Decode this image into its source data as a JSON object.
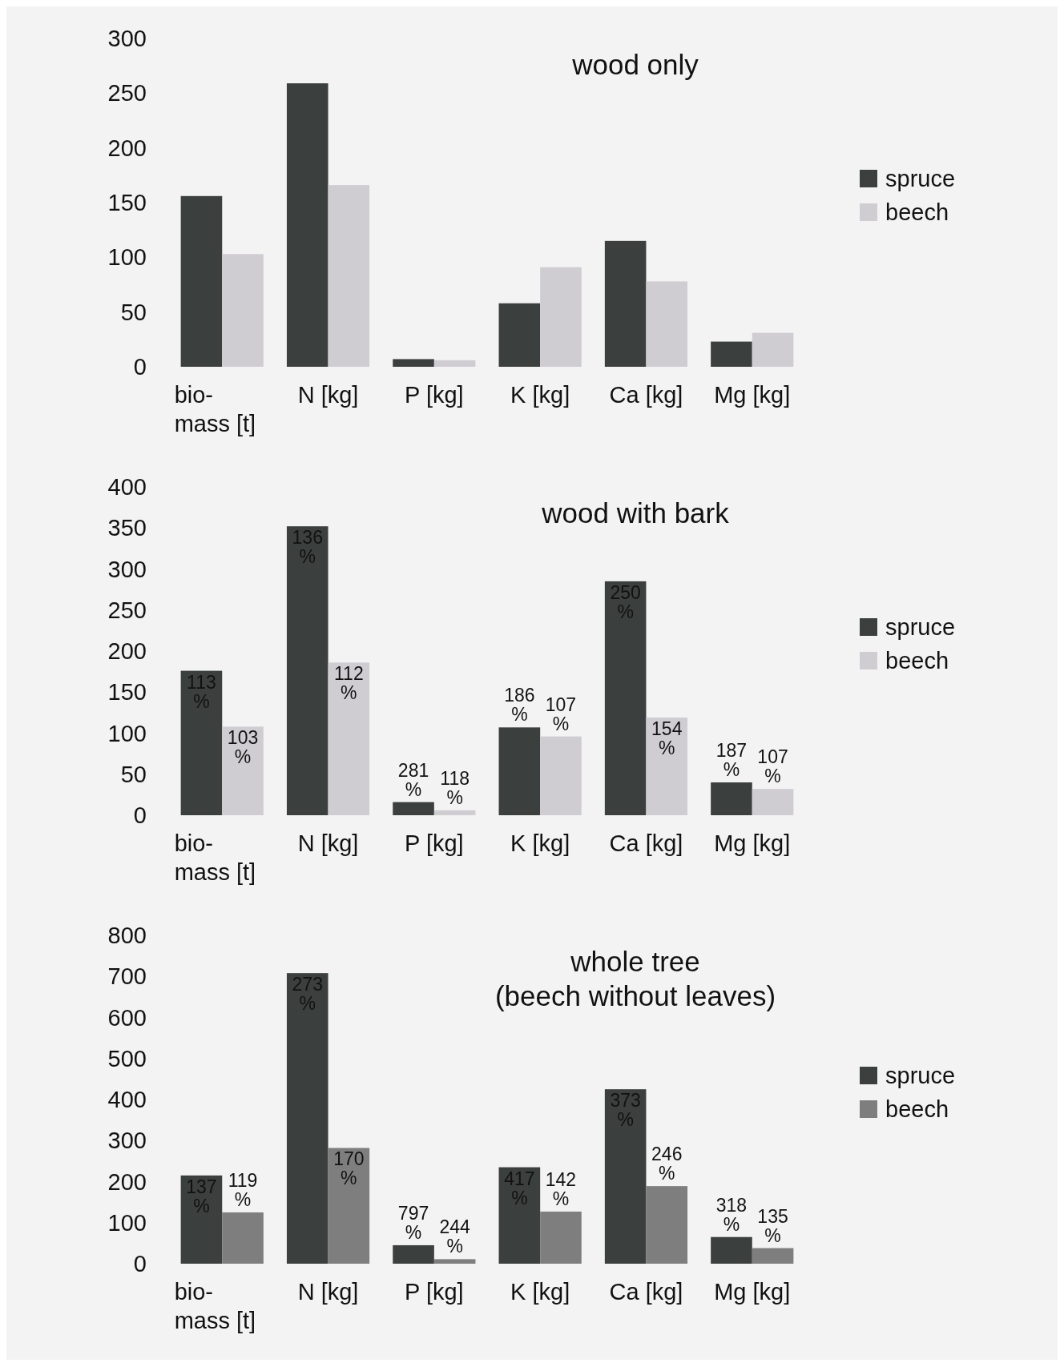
{
  "chart_data": [
    {
      "type": "bar",
      "title": "wood only",
      "categories": [
        "bio-mass [t]",
        "N [kg]",
        "P [kg]",
        "K [kg]",
        "Ca [kg]",
        "Mg [kg]"
      ],
      "ylim": [
        0,
        300
      ],
      "yticks": [
        0,
        50,
        100,
        150,
        200,
        250,
        300
      ],
      "grid": false,
      "legend": "right",
      "series": [
        {
          "name": "spruce",
          "color": "#3b3f3d",
          "values": [
            156,
            259,
            7,
            58,
            115,
            23
          ]
        },
        {
          "name": "beech",
          "color": "#cfcdd1",
          "values": [
            103,
            166,
            6,
            91,
            78,
            31
          ]
        }
      ]
    },
    {
      "type": "bar",
      "title": "wood with bark",
      "categories": [
        "bio-mass [t]",
        "N [kg]",
        "P [kg]",
        "K [kg]",
        "Ca [kg]",
        "Mg [kg]"
      ],
      "ylim": [
        0,
        400
      ],
      "yticks": [
        0,
        50,
        100,
        150,
        200,
        250,
        300,
        350,
        400
      ],
      "grid": false,
      "legend": "right",
      "series": [
        {
          "name": "spruce",
          "color": "#3b3f3d",
          "values": [
            176,
            352,
            16,
            107,
            285,
            40
          ]
        },
        {
          "name": "beech",
          "color": "#cfcdd1",
          "values": [
            108,
            186,
            6,
            96,
            119,
            32
          ]
        }
      ],
      "annotations": [
        {
          "text": "113 %",
          "x": "bio-mass [t]",
          "y": 176
        },
        {
          "text": "136 %",
          "x": "N [kg]",
          "y": 352
        },
        {
          "text": "281 %",
          "x": "P [kg]",
          "y": 16
        },
        {
          "text": "186 %",
          "x": "K [kg]",
          "y": 107
        },
        {
          "text": "250 %",
          "x": "Ca [kg]",
          "y": 285
        },
        {
          "text": "187 %",
          "x": "Mg [kg]",
          "y": 40
        },
        {
          "text": "103 %",
          "x": "bio-mass [t]",
          "y": 108
        },
        {
          "text": "112 %",
          "x": "N [kg]",
          "y": 186
        },
        {
          "text": "118 %",
          "x": "P [kg]",
          "y": 6
        },
        {
          "text": "107 %",
          "x": "K [kg]",
          "y": 96
        },
        {
          "text": "154 %",
          "x": "Ca [kg]",
          "y": 119
        },
        {
          "text": "107 %",
          "x": "Mg [kg]",
          "y": 32
        }
      ]
    },
    {
      "type": "bar",
      "title": "whole tree",
      "subtitle": "(beech without leaves)",
      "categories": [
        "bio-mass [t]",
        "N [kg]",
        "P [kg]",
        "K [kg]",
        "Ca [kg]",
        "Mg [kg]"
      ],
      "ylim": [
        0,
        800
      ],
      "yticks": [
        0,
        100,
        200,
        300,
        400,
        500,
        600,
        700,
        800
      ],
      "grid": false,
      "legend": "right",
      "series": [
        {
          "name": "spruce",
          "color": "#3b3f3d",
          "values": [
            215,
            708,
            45,
            235,
            425,
            65
          ]
        },
        {
          "name": "beech",
          "color": "#7e7e7e",
          "values": [
            125,
            282,
            11,
            127,
            189,
            38
          ]
        }
      ],
      "annotations": [
        {
          "text": "137 %",
          "x": "bio-mass [t]",
          "y": 215
        },
        {
          "text": "273 %",
          "x": "N [kg]",
          "y": 708
        },
        {
          "text": "797 %",
          "x": "P [kg]",
          "y": 45
        },
        {
          "text": "417 %",
          "x": "K [kg]",
          "y": 235
        },
        {
          "text": "373 %",
          "x": "Ca [kg]",
          "y": 425
        },
        {
          "text": "318 %",
          "x": "Mg [kg]",
          "y": 65
        },
        {
          "text": "119 %",
          "x": "bio-mass [t]",
          "y": 125
        },
        {
          "text": "170 %",
          "x": "N [kg]",
          "y": 282
        },
        {
          "text": "244 %",
          "x": "P [kg]",
          "y": 11
        },
        {
          "text": "142 %",
          "x": "K [kg]",
          "y": 127
        },
        {
          "text": "246 %",
          "x": "Ca [kg]",
          "y": 189
        },
        {
          "text": "135 %",
          "x": "Mg [kg]",
          "y": 38
        }
      ]
    }
  ]
}
